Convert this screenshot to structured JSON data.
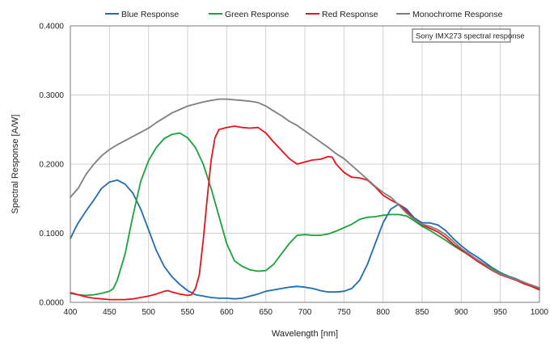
{
  "chart_data": {
    "type": "line",
    "xlabel": "Wavelength [nm]",
    "ylabel": "Spectral Response [A/W]",
    "xlim": [
      400,
      1000
    ],
    "ylim": [
      0,
      0.4
    ],
    "x_ticks": [
      "400",
      "450",
      "500",
      "550",
      "600",
      "650",
      "700",
      "750",
      "800",
      "850",
      "900",
      "950",
      "1000"
    ],
    "y_ticks": [
      "0.0000",
      "0.1000",
      "0.2000",
      "0.3000",
      "0.4000"
    ],
    "grid": true,
    "legend_position": "top",
    "annotation": "Sony IMX273 spectral response",
    "series": [
      {
        "name": "Blue Response",
        "color": "#1f6bb5",
        "points": [
          [
            400,
            0.092
          ],
          [
            405,
            0.104
          ],
          [
            410,
            0.115
          ],
          [
            420,
            0.132
          ],
          [
            430,
            0.148
          ],
          [
            440,
            0.165
          ],
          [
            450,
            0.174
          ],
          [
            460,
            0.177
          ],
          [
            470,
            0.171
          ],
          [
            480,
            0.158
          ],
          [
            490,
            0.135
          ],
          [
            500,
            0.105
          ],
          [
            510,
            0.075
          ],
          [
            520,
            0.052
          ],
          [
            530,
            0.037
          ],
          [
            540,
            0.026
          ],
          [
            550,
            0.017
          ],
          [
            560,
            0.011
          ],
          [
            570,
            0.009
          ],
          [
            580,
            0.007
          ],
          [
            590,
            0.006
          ],
          [
            600,
            0.006
          ],
          [
            610,
            0.005
          ],
          [
            620,
            0.006
          ],
          [
            630,
            0.009
          ],
          [
            640,
            0.012
          ],
          [
            650,
            0.016
          ],
          [
            660,
            0.018
          ],
          [
            670,
            0.02
          ],
          [
            680,
            0.022
          ],
          [
            690,
            0.023
          ],
          [
            700,
            0.022
          ],
          [
            710,
            0.02
          ],
          [
            720,
            0.017
          ],
          [
            730,
            0.015
          ],
          [
            740,
            0.015
          ],
          [
            750,
            0.016
          ],
          [
            760,
            0.02
          ],
          [
            770,
            0.032
          ],
          [
            780,
            0.055
          ],
          [
            790,
            0.085
          ],
          [
            800,
            0.115
          ],
          [
            810,
            0.135
          ],
          [
            820,
            0.142
          ],
          [
            830,
            0.135
          ],
          [
            840,
            0.122
          ],
          [
            850,
            0.115
          ],
          [
            860,
            0.115
          ],
          [
            870,
            0.112
          ],
          [
            880,
            0.104
          ],
          [
            890,
            0.092
          ],
          [
            900,
            0.082
          ],
          [
            910,
            0.073
          ],
          [
            920,
            0.066
          ],
          [
            930,
            0.058
          ],
          [
            940,
            0.05
          ],
          [
            950,
            0.043
          ],
          [
            960,
            0.038
          ],
          [
            970,
            0.034
          ],
          [
            980,
            0.029
          ],
          [
            990,
            0.024
          ],
          [
            1000,
            0.02
          ]
        ]
      },
      {
        "name": "Green Response",
        "color": "#1aa33a",
        "points": [
          [
            400,
            0.013
          ],
          [
            410,
            0.011
          ],
          [
            420,
            0.01
          ],
          [
            430,
            0.011
          ],
          [
            440,
            0.013
          ],
          [
            450,
            0.016
          ],
          [
            455,
            0.02
          ],
          [
            460,
            0.032
          ],
          [
            470,
            0.07
          ],
          [
            480,
            0.125
          ],
          [
            490,
            0.175
          ],
          [
            500,
            0.205
          ],
          [
            510,
            0.224
          ],
          [
            520,
            0.237
          ],
          [
            530,
            0.243
          ],
          [
            540,
            0.245
          ],
          [
            550,
            0.238
          ],
          [
            560,
            0.224
          ],
          [
            570,
            0.2
          ],
          [
            580,
            0.165
          ],
          [
            590,
            0.125
          ],
          [
            600,
            0.085
          ],
          [
            610,
            0.06
          ],
          [
            620,
            0.052
          ],
          [
            630,
            0.047
          ],
          [
            640,
            0.045
          ],
          [
            650,
            0.046
          ],
          [
            660,
            0.055
          ],
          [
            670,
            0.07
          ],
          [
            680,
            0.085
          ],
          [
            690,
            0.097
          ],
          [
            700,
            0.098
          ],
          [
            710,
            0.097
          ],
          [
            720,
            0.097
          ],
          [
            730,
            0.099
          ],
          [
            740,
            0.103
          ],
          [
            750,
            0.108
          ],
          [
            760,
            0.113
          ],
          [
            770,
            0.12
          ],
          [
            780,
            0.123
          ],
          [
            790,
            0.124
          ],
          [
            800,
            0.126
          ],
          [
            810,
            0.127
          ],
          [
            820,
            0.127
          ],
          [
            830,
            0.125
          ],
          [
            840,
            0.118
          ],
          [
            850,
            0.11
          ],
          [
            860,
            0.104
          ],
          [
            870,
            0.097
          ],
          [
            880,
            0.09
          ],
          [
            890,
            0.082
          ],
          [
            900,
            0.075
          ],
          [
            910,
            0.069
          ],
          [
            920,
            0.062
          ],
          [
            930,
            0.055
          ],
          [
            940,
            0.049
          ],
          [
            950,
            0.042
          ],
          [
            960,
            0.037
          ],
          [
            970,
            0.033
          ],
          [
            980,
            0.029
          ],
          [
            990,
            0.024
          ],
          [
            1000,
            0.02
          ]
        ]
      },
      {
        "name": "Red Response",
        "color": "#e8141b",
        "points": [
          [
            400,
            0.014
          ],
          [
            410,
            0.011
          ],
          [
            420,
            0.008
          ],
          [
            430,
            0.006
          ],
          [
            440,
            0.005
          ],
          [
            450,
            0.004
          ],
          [
            460,
            0.004
          ],
          [
            470,
            0.004
          ],
          [
            480,
            0.005
          ],
          [
            490,
            0.007
          ],
          [
            500,
            0.009
          ],
          [
            510,
            0.012
          ],
          [
            520,
            0.016
          ],
          [
            525,
            0.017
          ],
          [
            530,
            0.015
          ],
          [
            540,
            0.012
          ],
          [
            550,
            0.01
          ],
          [
            555,
            0.011
          ],
          [
            560,
            0.02
          ],
          [
            565,
            0.04
          ],
          [
            570,
            0.09
          ],
          [
            575,
            0.15
          ],
          [
            580,
            0.205
          ],
          [
            585,
            0.238
          ],
          [
            590,
            0.25
          ],
          [
            600,
            0.253
          ],
          [
            610,
            0.255
          ],
          [
            620,
            0.253
          ],
          [
            630,
            0.252
          ],
          [
            640,
            0.253
          ],
          [
            650,
            0.245
          ],
          [
            660,
            0.232
          ],
          [
            670,
            0.22
          ],
          [
            680,
            0.208
          ],
          [
            690,
            0.2
          ],
          [
            700,
            0.203
          ],
          [
            710,
            0.206
          ],
          [
            720,
            0.207
          ],
          [
            730,
            0.211
          ],
          [
            735,
            0.21
          ],
          [
            740,
            0.2
          ],
          [
            750,
            0.188
          ],
          [
            760,
            0.181
          ],
          [
            770,
            0.18
          ],
          [
            780,
            0.177
          ],
          [
            790,
            0.167
          ],
          [
            800,
            0.155
          ],
          [
            810,
            0.148
          ],
          [
            820,
            0.142
          ],
          [
            830,
            0.132
          ],
          [
            840,
            0.12
          ],
          [
            850,
            0.112
          ],
          [
            860,
            0.107
          ],
          [
            870,
            0.102
          ],
          [
            880,
            0.094
          ],
          [
            890,
            0.084
          ],
          [
            900,
            0.076
          ],
          [
            910,
            0.068
          ],
          [
            920,
            0.06
          ],
          [
            930,
            0.053
          ],
          [
            940,
            0.046
          ],
          [
            950,
            0.04
          ],
          [
            960,
            0.036
          ],
          [
            970,
            0.032
          ],
          [
            980,
            0.027
          ],
          [
            990,
            0.023
          ],
          [
            1000,
            0.018
          ]
        ]
      },
      {
        "name": "Monochrome Response",
        "color": "#7f7f7f",
        "points": [
          [
            400,
            0.152
          ],
          [
            410,
            0.165
          ],
          [
            420,
            0.185
          ],
          [
            430,
            0.2
          ],
          [
            440,
            0.212
          ],
          [
            450,
            0.221
          ],
          [
            460,
            0.228
          ],
          [
            470,
            0.234
          ],
          [
            480,
            0.24
          ],
          [
            490,
            0.246
          ],
          [
            500,
            0.252
          ],
          [
            510,
            0.26
          ],
          [
            520,
            0.267
          ],
          [
            530,
            0.274
          ],
          [
            540,
            0.279
          ],
          [
            550,
            0.284
          ],
          [
            560,
            0.287
          ],
          [
            570,
            0.29
          ],
          [
            580,
            0.292
          ],
          [
            590,
            0.294
          ],
          [
            600,
            0.294
          ],
          [
            610,
            0.293
          ],
          [
            620,
            0.292
          ],
          [
            630,
            0.291
          ],
          [
            640,
            0.289
          ],
          [
            650,
            0.284
          ],
          [
            660,
            0.277
          ],
          [
            670,
            0.27
          ],
          [
            680,
            0.262
          ],
          [
            690,
            0.256
          ],
          [
            700,
            0.248
          ],
          [
            710,
            0.24
          ],
          [
            720,
            0.232
          ],
          [
            730,
            0.224
          ],
          [
            740,
            0.215
          ],
          [
            750,
            0.208
          ],
          [
            760,
            0.198
          ],
          [
            770,
            0.188
          ],
          [
            780,
            0.178
          ],
          [
            790,
            0.168
          ],
          [
            800,
            0.159
          ],
          [
            810,
            0.152
          ],
          [
            820,
            0.141
          ],
          [
            830,
            0.129
          ],
          [
            840,
            0.12
          ],
          [
            850,
            0.113
          ],
          [
            860,
            0.11
          ],
          [
            870,
            0.105
          ],
          [
            880,
            0.098
          ],
          [
            890,
            0.088
          ],
          [
            900,
            0.078
          ],
          [
            910,
            0.07
          ],
          [
            920,
            0.062
          ],
          [
            930,
            0.055
          ],
          [
            940,
            0.047
          ],
          [
            950,
            0.041
          ],
          [
            960,
            0.037
          ],
          [
            970,
            0.033
          ],
          [
            980,
            0.029
          ],
          [
            990,
            0.025
          ],
          [
            1000,
            0.021
          ]
        ]
      }
    ]
  }
}
